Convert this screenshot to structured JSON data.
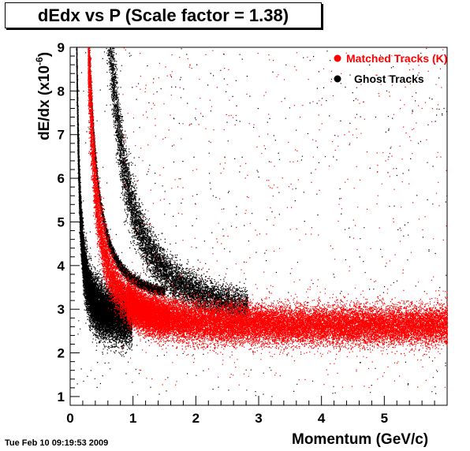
{
  "title": "dEdx vs P (Scale factor = 1.38)",
  "timestamp": "Tue Feb 10 09:19:53 2009",
  "chart_data": {
    "type": "scatter",
    "title": "dEdx vs P (Scale factor = 1.38)",
    "xlabel": "Momentum  (GeV/c)",
    "ylabel_main": "dE/dx (x10",
    "ylabel_exp": "-6",
    "ylabel_close": ")",
    "xlim": [
      0,
      6
    ],
    "ylim": [
      0.8,
      9
    ],
    "xticks": [
      0,
      1,
      2,
      3,
      4,
      5
    ],
    "yticks": [
      1,
      2,
      3,
      4,
      5,
      6,
      7,
      8,
      9
    ],
    "legend_position": "top-right",
    "series": [
      {
        "name": "Matched Tracks (K)",
        "color": "#ff0000",
        "bands": [
          {
            "shape": "kaon-curve",
            "x_range": [
              0.25,
              6.0
            ],
            "y_at_high_p": 2.7
          }
        ]
      },
      {
        "name": "Ghost Tracks",
        "color": "#000000",
        "bands": [
          {
            "shape": "pion-band",
            "x_range": [
              0.08,
              1.0
            ],
            "y_range": [
              1.9,
              4.5
            ]
          },
          {
            "shape": "kaon-curve",
            "x_range": [
              0.22,
              1.5
            ]
          },
          {
            "shape": "proton-curve",
            "x_range": [
              0.45,
              3.0
            ]
          }
        ]
      }
    ]
  }
}
